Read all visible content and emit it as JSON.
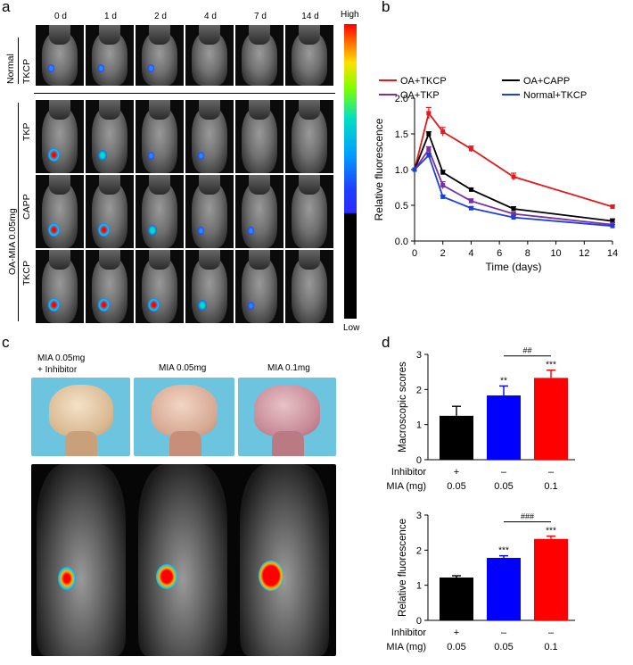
{
  "panel_a": {
    "letter": "a",
    "day_labels": [
      "0 d",
      "1 d",
      "2 d",
      "4 d",
      "7 d",
      "14 d"
    ],
    "row_group_normal": "Normal",
    "rows": [
      "TKCP",
      "TKP",
      "CAPP",
      "TKCP"
    ],
    "group_oa": "OA-MIA 0.05mg",
    "colorbar_high": "High",
    "colorbar_low": "Low"
  },
  "panel_b_letter": "b",
  "panel_c": {
    "letter": "c",
    "labels": [
      "MIA 0.05mg",
      "+ Inhibitor",
      "MIA 0.05mg",
      "MIA 0.1mg"
    ]
  },
  "panel_d_letter": "d",
  "chart_data": [
    {
      "id": "b",
      "type": "line",
      "xlabel": "Time (days)",
      "ylabel": "Relative fluorescence",
      "xlim": [
        0,
        14
      ],
      "ylim": [
        0,
        2.0
      ],
      "xticks": [
        0,
        2,
        4,
        6,
        8,
        10,
        12,
        14
      ],
      "yticks": [
        0.0,
        0.5,
        1.0,
        1.5,
        2.0
      ],
      "x": [
        0,
        1,
        2,
        4,
        7,
        14
      ],
      "series": [
        {
          "name": "OA+TKCP",
          "color": "#e41a1c",
          "values": [
            1.0,
            1.79,
            1.53,
            1.29,
            0.9,
            0.48
          ],
          "err": [
            0,
            0.08,
            0.06,
            0.04,
            0.05,
            0.02
          ]
        },
        {
          "name": "OA+CAPP",
          "color": "#000000",
          "values": [
            1.0,
            1.5,
            0.96,
            0.72,
            0.45,
            0.28
          ],
          "err": [
            0,
            0.03,
            0.03,
            0.02,
            0.03,
            0.03
          ]
        },
        {
          "name": "OA+TKP",
          "color": "#7b2fa0",
          "values": [
            1.0,
            1.28,
            0.78,
            0.56,
            0.38,
            0.23
          ],
          "err": [
            0,
            0.04,
            0.05,
            0.03,
            0.02,
            0.03
          ]
        },
        {
          "name": "Normal+TKCP",
          "color": "#1f3fdd",
          "values": [
            1.0,
            1.2,
            0.62,
            0.46,
            0.33,
            0.21
          ],
          "err": [
            0,
            0.03,
            0.02,
            0.02,
            0.03,
            0.02
          ]
        }
      ]
    },
    {
      "id": "d-top",
      "type": "bar",
      "ylabel": "Macroscopic scores",
      "ylim": [
        0,
        3
      ],
      "yticks": [
        0,
        1,
        2,
        3
      ],
      "categories": [
        "MIA 0.05mg + Inhibitor",
        "MIA 0.05mg",
        "MIA 0.1mg"
      ],
      "values": [
        1.25,
        1.83,
        2.33
      ],
      "err": [
        0.27,
        0.27,
        0.22
      ],
      "colors": [
        "#000000",
        "#0000ff",
        "#ff0000"
      ],
      "sig": [
        "",
        "**",
        "***"
      ],
      "bracket": "##",
      "rows": [
        {
          "label": "Inhibitor",
          "values": [
            "+",
            "–",
            "–"
          ]
        },
        {
          "label": "MIA (mg)",
          "values": [
            "0.05",
            "0.05",
            "0.1"
          ]
        }
      ]
    },
    {
      "id": "d-bottom",
      "type": "bar",
      "ylabel": "Relative fluorescence",
      "ylim": [
        0,
        3
      ],
      "yticks": [
        0,
        1,
        2,
        3
      ],
      "categories": [
        "MIA 0.05mg + Inhibitor",
        "MIA 0.05mg",
        "MIA 0.1mg"
      ],
      "values": [
        1.22,
        1.78,
        2.32
      ],
      "err": [
        0.05,
        0.06,
        0.08
      ],
      "colors": [
        "#000000",
        "#0000ff",
        "#ff0000"
      ],
      "sig": [
        "",
        "***",
        "***"
      ],
      "bracket": "###",
      "rows": [
        {
          "label": "Inhibitor",
          "values": [
            "+",
            "–",
            "–"
          ]
        },
        {
          "label": "MIA (mg)",
          "values": [
            "0.05",
            "0.05",
            "0.1"
          ]
        }
      ]
    }
  ]
}
